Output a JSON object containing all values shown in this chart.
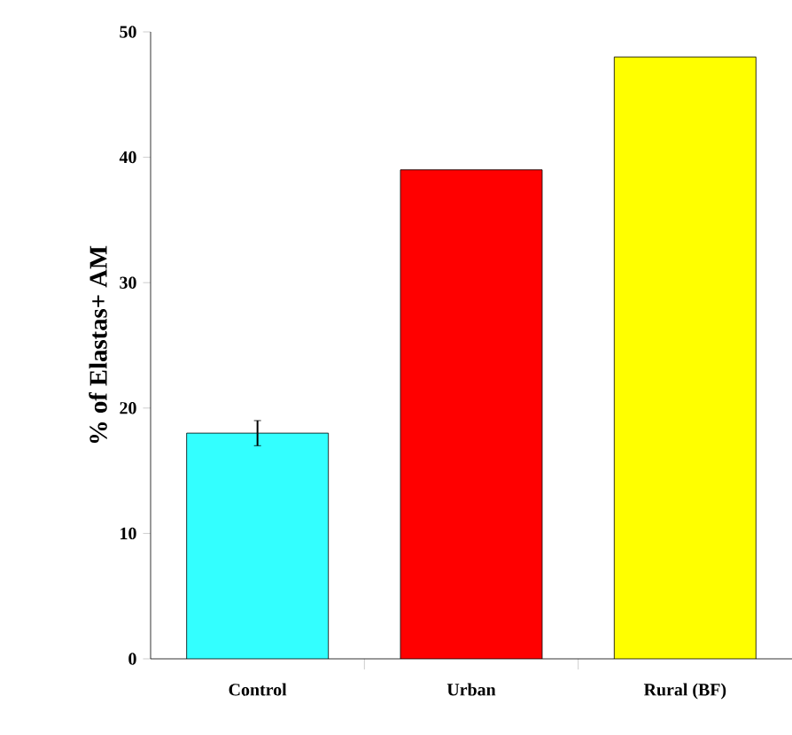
{
  "chart_data": {
    "type": "bar",
    "ylabel": "% of Elastas+ AM",
    "categories": [
      "Control",
      "Urban",
      "Rural (BF)"
    ],
    "values": [
      18,
      39,
      48
    ],
    "colors": [
      "#33ffff",
      "#ff0000",
      "#ffff00"
    ],
    "errors": [
      1,
      null,
      null
    ],
    "ylim": [
      0,
      50
    ],
    "yticks": [
      0,
      10,
      20,
      30,
      40,
      50
    ],
    "grid": false
  }
}
